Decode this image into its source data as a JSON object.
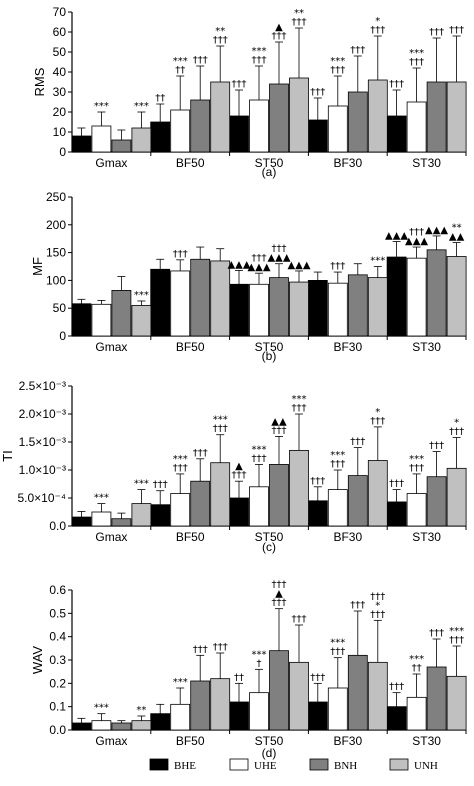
{
  "colors": {
    "BHE": "#000000",
    "UHE": "#ffffff",
    "BNH": "#808080",
    "UNH": "#c0c0c0"
  },
  "legend": [
    {
      "key": "BHE",
      "label": "BHE"
    },
    {
      "key": "UHE",
      "label": "UHE"
    },
    {
      "key": "BNH",
      "label": "BNH"
    },
    {
      "key": "UNH",
      "label": "UNH"
    }
  ],
  "chart_data": [
    {
      "type": "bar",
      "panel": "(a)",
      "ylabel": "RMS",
      "ylim": [
        0,
        70
      ],
      "yticks": [
        0,
        10,
        20,
        30,
        40,
        50,
        60,
        70
      ],
      "ytick_labels": [
        "0",
        "10",
        "20",
        "30",
        "40",
        "50",
        "60",
        "70"
      ],
      "categories": [
        "Gmax",
        "BF50",
        "ST50",
        "BF30",
        "ST30"
      ],
      "series": [
        {
          "name": "BHE",
          "values": [
            8,
            15,
            18,
            16,
            18
          ],
          "errors": [
            4,
            9,
            13,
            11,
            13
          ]
        },
        {
          "name": "UHE",
          "values": [
            13,
            21,
            26,
            23,
            25
          ],
          "errors": [
            7,
            17,
            17,
            15,
            17
          ]
        },
        {
          "name": "BNH",
          "values": [
            6,
            26,
            34,
            30,
            35
          ],
          "errors": [
            5,
            17,
            21,
            18,
            22
          ]
        },
        {
          "name": "UNH",
          "values": [
            12,
            35,
            37,
            36,
            35
          ],
          "errors": [
            8,
            18,
            25,
            22,
            23
          ]
        }
      ],
      "annotations": [
        {
          "cat": 0,
          "bar": 1,
          "lines": [
            "***"
          ]
        },
        {
          "cat": 0,
          "bar": 3,
          "lines": [
            "***"
          ]
        },
        {
          "cat": 1,
          "bar": 0,
          "lines": [
            "††"
          ]
        },
        {
          "cat": 1,
          "bar": 1,
          "lines": [
            "***",
            "††"
          ]
        },
        {
          "cat": 1,
          "bar": 2,
          "lines": [
            "†††"
          ]
        },
        {
          "cat": 1,
          "bar": 3,
          "lines": [
            "**",
            "†††"
          ]
        },
        {
          "cat": 2,
          "bar": 0,
          "lines": [
            "†††"
          ]
        },
        {
          "cat": 2,
          "bar": 1,
          "lines": [
            "***",
            "†††"
          ]
        },
        {
          "cat": 2,
          "bar": 2,
          "lines": [
            "▲",
            "†††"
          ]
        },
        {
          "cat": 2,
          "bar": 3,
          "lines": [
            "**",
            "†††"
          ]
        },
        {
          "cat": 3,
          "bar": 0,
          "lines": [
            "†††"
          ]
        },
        {
          "cat": 3,
          "bar": 1,
          "lines": [
            "***",
            "†††"
          ]
        },
        {
          "cat": 3,
          "bar": 2,
          "lines": [
            "†††"
          ]
        },
        {
          "cat": 3,
          "bar": 3,
          "lines": [
            "*",
            "†††"
          ]
        },
        {
          "cat": 4,
          "bar": 0,
          "lines": [
            "†††"
          ]
        },
        {
          "cat": 4,
          "bar": 1,
          "lines": [
            "***",
            "†††"
          ]
        },
        {
          "cat": 4,
          "bar": 2,
          "lines": [
            "†††"
          ]
        },
        {
          "cat": 4,
          "bar": 3,
          "lines": [
            "†††"
          ]
        }
      ]
    },
    {
      "type": "bar",
      "panel": "(b)",
      "ylabel": "MF",
      "ylim": [
        0,
        250
      ],
      "yticks": [
        0,
        50,
        100,
        150,
        200,
        250
      ],
      "ytick_labels": [
        "0",
        "50",
        "100",
        "150",
        "200",
        "250"
      ],
      "categories": [
        "Gmax",
        "BF50",
        "ST50",
        "BF30",
        "ST30"
      ],
      "series": [
        {
          "name": "BHE",
          "values": [
            58,
            120,
            93,
            100,
            142
          ],
          "errors": [
            8,
            18,
            25,
            15,
            28
          ]
        },
        {
          "name": "UHE",
          "values": [
            57,
            117,
            93,
            95,
            140
          ],
          "errors": [
            7,
            20,
            20,
            20,
            20
          ]
        },
        {
          "name": "BNH",
          "values": [
            82,
            138,
            105,
            110,
            155
          ],
          "errors": [
            25,
            22,
            25,
            20,
            25
          ]
        },
        {
          "name": "UNH",
          "values": [
            55,
            135,
            97,
            105,
            143
          ],
          "errors": [
            8,
            22,
            20,
            20,
            25
          ]
        }
      ],
      "annotations": [
        {
          "cat": 0,
          "bar": 3,
          "lines": [
            "***"
          ]
        },
        {
          "cat": 1,
          "bar": 1,
          "lines": [
            "†††"
          ]
        },
        {
          "cat": 2,
          "bar": 0,
          "lines": [
            "▲▲▲"
          ]
        },
        {
          "cat": 2,
          "bar": 1,
          "lines": [
            "†††",
            "▲▲▲"
          ]
        },
        {
          "cat": 2,
          "bar": 2,
          "lines": [
            "†††",
            "▲▲▲"
          ]
        },
        {
          "cat": 2,
          "bar": 3,
          "lines": [
            "▲▲▲"
          ]
        },
        {
          "cat": 3,
          "bar": 1,
          "lines": [
            "†††"
          ]
        },
        {
          "cat": 3,
          "bar": 3,
          "lines": [
            "***"
          ]
        },
        {
          "cat": 4,
          "bar": 0,
          "lines": [
            "▲▲▲"
          ]
        },
        {
          "cat": 4,
          "bar": 1,
          "lines": [
            "†††",
            "▲▲▲"
          ]
        },
        {
          "cat": 4,
          "bar": 2,
          "lines": [
            "▲▲▲"
          ]
        },
        {
          "cat": 4,
          "bar": 3,
          "lines": [
            "**",
            "▲▲"
          ]
        }
      ]
    },
    {
      "type": "bar",
      "panel": "(c)",
      "ylabel": "TI",
      "ylim": [
        0,
        0.0025
      ],
      "yticks": [
        0,
        0.0005,
        0.001,
        0.0015,
        0.002,
        0.0025
      ],
      "ytick_labels": [
        "0.0",
        "5.0×10⁻⁴",
        "1.0×10⁻³",
        "1.5×10⁻³",
        "2.0×10⁻³",
        "2.5×10⁻³"
      ],
      "categories": [
        "Gmax",
        "BF50",
        "ST50",
        "BF30",
        "ST30"
      ],
      "series": [
        {
          "name": "BHE",
          "values": [
            0.00016,
            0.00038,
            0.0005,
            0.00045,
            0.00043
          ],
          "errors": [
            0.0001,
            0.00025,
            0.0003,
            0.00025,
            0.00022
          ]
        },
        {
          "name": "UHE",
          "values": [
            0.00025,
            0.00058,
            0.0007,
            0.00065,
            0.00058
          ],
          "errors": [
            0.00015,
            0.00035,
            0.0004,
            0.00035,
            0.00035
          ]
        },
        {
          "name": "BNH",
          "values": [
            0.00013,
            0.0008,
            0.0011,
            0.0009,
            0.00088
          ],
          "errors": [
            0.0001,
            0.0004,
            0.0005,
            0.0005,
            0.00045
          ]
        },
        {
          "name": "UNH",
          "values": [
            0.0004,
            0.00113,
            0.00135,
            0.00117,
            0.00103
          ],
          "errors": [
            0.00025,
            0.0005,
            0.00065,
            0.0006,
            0.00055
          ]
        }
      ],
      "annotations": [
        {
          "cat": 0,
          "bar": 1,
          "lines": [
            "***"
          ]
        },
        {
          "cat": 0,
          "bar": 3,
          "lines": [
            "***"
          ]
        },
        {
          "cat": 1,
          "bar": 0,
          "lines": [
            "†††"
          ]
        },
        {
          "cat": 1,
          "bar": 1,
          "lines": [
            "***",
            "†††"
          ]
        },
        {
          "cat": 1,
          "bar": 2,
          "lines": [
            "†††"
          ]
        },
        {
          "cat": 1,
          "bar": 3,
          "lines": [
            "***",
            "†††"
          ]
        },
        {
          "cat": 2,
          "bar": 0,
          "lines": [
            "▲",
            "†††"
          ]
        },
        {
          "cat": 2,
          "bar": 1,
          "lines": [
            "***",
            "†††"
          ]
        },
        {
          "cat": 2,
          "bar": 2,
          "lines": [
            "▲▲",
            "†††"
          ]
        },
        {
          "cat": 2,
          "bar": 3,
          "lines": [
            "***",
            "†††"
          ]
        },
        {
          "cat": 3,
          "bar": 0,
          "lines": [
            "†††"
          ]
        },
        {
          "cat": 3,
          "bar": 1,
          "lines": [
            "***",
            "†††"
          ]
        },
        {
          "cat": 3,
          "bar": 2,
          "lines": [
            "†††"
          ]
        },
        {
          "cat": 3,
          "bar": 3,
          "lines": [
            "*",
            "†††"
          ]
        },
        {
          "cat": 4,
          "bar": 0,
          "lines": [
            "†††"
          ]
        },
        {
          "cat": 4,
          "bar": 1,
          "lines": [
            "***",
            "†††"
          ]
        },
        {
          "cat": 4,
          "bar": 2,
          "lines": [
            "†††"
          ]
        },
        {
          "cat": 4,
          "bar": 3,
          "lines": [
            "*",
            "†††"
          ]
        }
      ]
    },
    {
      "type": "bar",
      "panel": "(d)",
      "ylabel": "WAV",
      "ylim": [
        0,
        0.6
      ],
      "yticks": [
        0,
        0.1,
        0.2,
        0.3,
        0.4,
        0.5,
        0.6
      ],
      "ytick_labels": [
        "0.0",
        "0.1",
        "0.2",
        "0.3",
        "0.4",
        "0.5",
        "0.6"
      ],
      "categories": [
        "Gmax",
        "BF50",
        "ST50",
        "BF30",
        "ST30"
      ],
      "series": [
        {
          "name": "BHE",
          "values": [
            0.03,
            0.07,
            0.12,
            0.12,
            0.1
          ],
          "errors": [
            0.02,
            0.04,
            0.08,
            0.08,
            0.06
          ]
        },
        {
          "name": "UHE",
          "values": [
            0.04,
            0.11,
            0.16,
            0.18,
            0.14
          ],
          "errors": [
            0.03,
            0.07,
            0.1,
            0.13,
            0.1
          ]
        },
        {
          "name": "BNH",
          "values": [
            0.03,
            0.21,
            0.34,
            0.32,
            0.27
          ],
          "errors": [
            0.01,
            0.11,
            0.18,
            0.19,
            0.12
          ]
        },
        {
          "name": "UNH",
          "values": [
            0.04,
            0.22,
            0.29,
            0.29,
            0.23
          ],
          "errors": [
            0.02,
            0.11,
            0.16,
            0.18,
            0.13
          ]
        }
      ],
      "annotations": [
        {
          "cat": 0,
          "bar": 1,
          "lines": [
            "***"
          ]
        },
        {
          "cat": 0,
          "bar": 3,
          "lines": [
            "**"
          ]
        },
        {
          "cat": 1,
          "bar": 1,
          "lines": [
            "***"
          ]
        },
        {
          "cat": 1,
          "bar": 2,
          "lines": [
            "†††"
          ]
        },
        {
          "cat": 1,
          "bar": 3,
          "lines": [
            "†††"
          ]
        },
        {
          "cat": 2,
          "bar": 0,
          "lines": [
            "††"
          ]
        },
        {
          "cat": 2,
          "bar": 1,
          "lines": [
            "***",
            "†"
          ]
        },
        {
          "cat": 2,
          "bar": 2,
          "lines": [
            "†††",
            "▲",
            "†††"
          ]
        },
        {
          "cat": 2,
          "bar": 3,
          "lines": [
            "†††"
          ]
        },
        {
          "cat": 3,
          "bar": 0,
          "lines": [
            "†††"
          ]
        },
        {
          "cat": 3,
          "bar": 1,
          "lines": [
            "***",
            "†††"
          ]
        },
        {
          "cat": 3,
          "bar": 2,
          "lines": [
            "†††"
          ]
        },
        {
          "cat": 3,
          "bar": 3,
          "lines": [
            "†††",
            "*",
            "†††"
          ]
        },
        {
          "cat": 4,
          "bar": 0,
          "lines": [
            "†††"
          ]
        },
        {
          "cat": 4,
          "bar": 1,
          "lines": [
            "***",
            "††"
          ]
        },
        {
          "cat": 4,
          "bar": 2,
          "lines": [
            "†††"
          ]
        },
        {
          "cat": 4,
          "bar": 3,
          "lines": [
            "***",
            "†††"
          ]
        }
      ]
    }
  ]
}
